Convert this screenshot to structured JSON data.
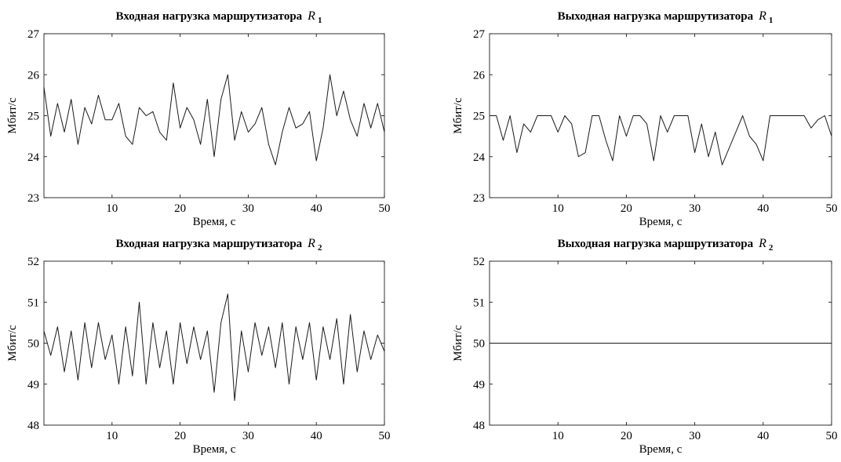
{
  "chart_data": [
    {
      "type": "line",
      "title": "Входная нагрузка маршрутизатора",
      "title_symbol": "R",
      "title_subscript": "1",
      "xlabel": "Время, с",
      "ylabel": "Мбит/с",
      "xlim": [
        0,
        50
      ],
      "ylim": [
        23,
        27
      ],
      "xticks": [
        10,
        20,
        30,
        40,
        50
      ],
      "yticks": [
        23,
        24,
        25,
        26,
        27
      ],
      "grid": false,
      "color": "#1a1a1a",
      "x": [
        0,
        1,
        2,
        3,
        4,
        5,
        6,
        7,
        8,
        9,
        10,
        11,
        12,
        13,
        14,
        15,
        16,
        17,
        18,
        19,
        20,
        21,
        22,
        23,
        24,
        25,
        26,
        27,
        28,
        29,
        30,
        31,
        32,
        33,
        34,
        35,
        36,
        37,
        38,
        39,
        40,
        41,
        42,
        43,
        44,
        45,
        46,
        47,
        48,
        49,
        50
      ],
      "y": [
        25.7,
        24.5,
        25.3,
        24.6,
        25.4,
        24.3,
        25.2,
        24.8,
        25.5,
        24.9,
        24.9,
        25.3,
        24.5,
        24.3,
        25.2,
        25.0,
        25.1,
        24.6,
        24.4,
        25.8,
        24.7,
        25.2,
        24.9,
        24.3,
        25.4,
        24.0,
        25.4,
        26.0,
        24.4,
        25.1,
        24.6,
        24.8,
        25.2,
        24.3,
        23.8,
        24.6,
        25.2,
        24.7,
        24.8,
        25.1,
        23.9,
        24.7,
        26.0,
        25.0,
        25.6,
        24.9,
        24.5,
        25.3,
        24.7,
        25.3,
        24.6
      ]
    },
    {
      "type": "line",
      "title": "Выходная нагрузка маршрутизатора",
      "title_symbol": "R",
      "title_subscript": "1",
      "xlabel": "Время, с",
      "ylabel": "Мбит/с",
      "xlim": [
        0,
        50
      ],
      "ylim": [
        23,
        27
      ],
      "xticks": [
        10,
        20,
        30,
        40,
        50
      ],
      "yticks": [
        23,
        24,
        25,
        26,
        27
      ],
      "grid": false,
      "color": "#1a1a1a",
      "x": [
        0,
        1,
        2,
        3,
        4,
        5,
        6,
        7,
        8,
        9,
        10,
        11,
        12,
        13,
        14,
        15,
        16,
        17,
        18,
        19,
        20,
        21,
        22,
        23,
        24,
        25,
        26,
        27,
        28,
        29,
        30,
        31,
        32,
        33,
        34,
        35,
        36,
        37,
        38,
        39,
        40,
        41,
        42,
        43,
        44,
        45,
        46,
        47,
        48,
        49,
        50
      ],
      "y": [
        25.0,
        25.0,
        24.4,
        25.0,
        24.1,
        24.8,
        24.6,
        25.0,
        25.0,
        25.0,
        24.6,
        25.0,
        24.8,
        24.0,
        24.1,
        25.0,
        25.0,
        24.4,
        23.9,
        25.0,
        24.5,
        25.0,
        25.0,
        24.8,
        23.9,
        25.0,
        24.6,
        25.0,
        25.0,
        25.0,
        24.1,
        24.8,
        24.0,
        24.6,
        23.8,
        24.2,
        24.6,
        25.0,
        24.5,
        24.3,
        23.9,
        25.0,
        25.0,
        25.0,
        25.0,
        25.0,
        25.0,
        24.7,
        24.9,
        25.0,
        24.5
      ]
    },
    {
      "type": "line",
      "title": "Входная нагрузка маршрутизатора",
      "title_symbol": "R",
      "title_subscript": "2",
      "xlabel": "Время, с",
      "ylabel": "Мбит/с",
      "xlim": [
        0,
        50
      ],
      "ylim": [
        48,
        52
      ],
      "xticks": [
        10,
        20,
        30,
        40,
        50
      ],
      "yticks": [
        48,
        49,
        50,
        51,
        52
      ],
      "grid": false,
      "color": "#1a1a1a",
      "x": [
        0,
        1,
        2,
        3,
        4,
        5,
        6,
        7,
        8,
        9,
        10,
        11,
        12,
        13,
        14,
        15,
        16,
        17,
        18,
        19,
        20,
        21,
        22,
        23,
        24,
        25,
        26,
        27,
        28,
        29,
        30,
        31,
        32,
        33,
        34,
        35,
        36,
        37,
        38,
        39,
        40,
        41,
        42,
        43,
        44,
        45,
        46,
        47,
        48,
        49,
        50
      ],
      "y": [
        50.3,
        49.7,
        50.4,
        49.3,
        50.3,
        49.1,
        50.5,
        49.4,
        50.5,
        49.6,
        50.2,
        49.0,
        50.4,
        49.2,
        51.0,
        49.0,
        50.5,
        49.4,
        50.3,
        49.0,
        50.5,
        49.5,
        50.4,
        49.6,
        50.3,
        48.8,
        50.5,
        51.2,
        48.6,
        50.3,
        49.3,
        50.5,
        49.7,
        50.4,
        49.4,
        50.5,
        49.0,
        50.4,
        49.6,
        50.5,
        49.1,
        50.4,
        49.6,
        50.6,
        49.0,
        50.7,
        49.3,
        50.3,
        49.6,
        50.2,
        49.8
      ]
    },
    {
      "type": "line",
      "title": "Выходная нагрузка маршрутизатора",
      "title_symbol": "R",
      "title_subscript": "2",
      "xlabel": "Время, с",
      "ylabel": "Мбит/с",
      "xlim": [
        0,
        50
      ],
      "ylim": [
        48,
        52
      ],
      "xticks": [
        10,
        20,
        30,
        40,
        50
      ],
      "yticks": [
        48,
        49,
        50,
        51,
        52
      ],
      "grid": false,
      "color": "#1a1a1a",
      "x": [
        0,
        50
      ],
      "y": [
        50.0,
        50.0
      ]
    }
  ]
}
